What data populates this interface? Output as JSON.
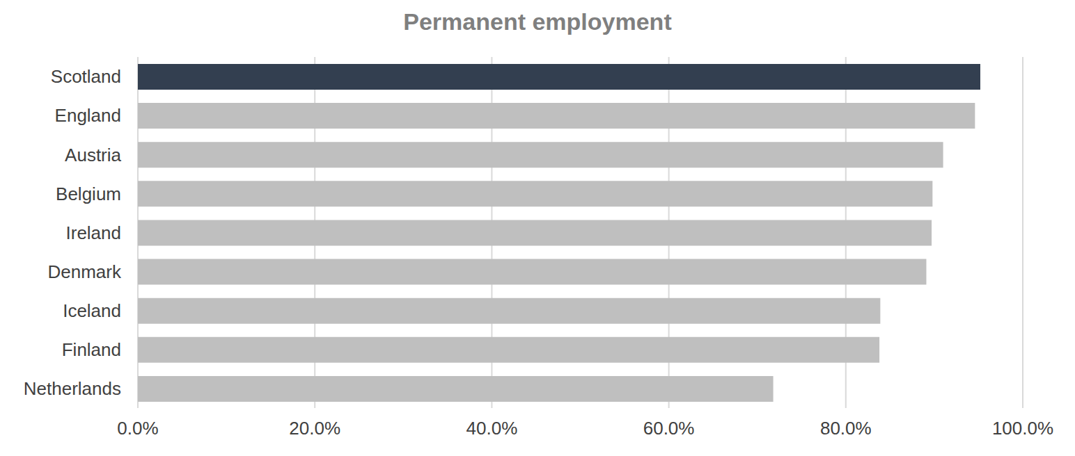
{
  "chart_data": {
    "type": "bar",
    "title": "Permanent employment",
    "orientation": "horizontal",
    "categories": [
      "Scotland",
      "England",
      "Austria",
      "Belgium",
      "Ireland",
      "Denmark",
      "Iceland",
      "Finland",
      "Netherlands"
    ],
    "values": [
      95.2,
      94.6,
      91.0,
      89.8,
      89.7,
      89.1,
      83.9,
      83.8,
      71.8
    ],
    "colors": [
      "#333f50",
      "#bfbfbf",
      "#bfbfbf",
      "#bfbfbf",
      "#bfbfbf",
      "#bfbfbf",
      "#bfbfbf",
      "#bfbfbf",
      "#bfbfbf"
    ],
    "xlim": [
      0,
      100
    ],
    "xticks": [
      {
        "value": 0,
        "label": "0.0%"
      },
      {
        "value": 20,
        "label": "20.0%"
      },
      {
        "value": 40,
        "label": "40.0%"
      },
      {
        "value": 60,
        "label": "60.0%"
      },
      {
        "value": 80,
        "label": "80.0%"
      },
      {
        "value": 100,
        "label": "100.0%"
      }
    ],
    "grid": true
  }
}
